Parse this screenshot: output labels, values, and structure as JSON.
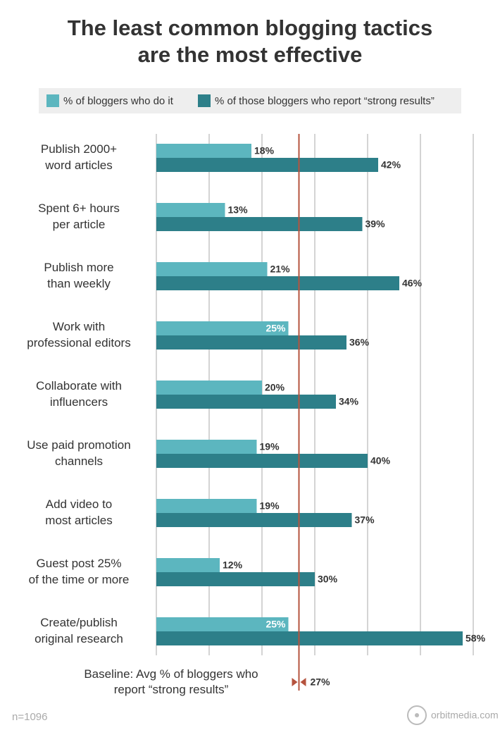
{
  "chart_data": {
    "type": "hbar",
    "title": "The least common blogging tactics\nare the most effective",
    "categories": [
      "Publish 2000+\nword articles",
      "Spent 6+ hours\nper article",
      "Publish more\nthan weekly",
      "Work with\nprofessional editors",
      "Collaborate with\ninfluencers",
      "Use paid promotion\nchannels",
      "Add video to\nmost articles",
      "Guest post 25%\nof the time or more",
      "Create/publish\noriginal research"
    ],
    "series": [
      {
        "name": "% of bloggers who do it",
        "color": "#5cb6bf",
        "values": [
          18,
          13,
          21,
          25,
          20,
          19,
          19,
          12,
          25
        ],
        "value_labels": [
          "18%",
          "13%",
          "21%",
          "25%",
          "20%",
          "19%",
          "19%",
          "12%",
          "25%"
        ]
      },
      {
        "name": "% of those bloggers who report “strong results”",
        "color": "#2d7f89",
        "values": [
          42,
          39,
          46,
          36,
          34,
          40,
          37,
          30,
          58
        ],
        "value_labels": [
          "42%",
          "39%",
          "46%",
          "36%",
          "34%",
          "40%",
          "37%",
          "30%",
          "58%"
        ]
      }
    ],
    "xlim": [
      0,
      60
    ],
    "xticks": [
      0,
      10,
      20,
      30,
      40,
      50,
      60
    ],
    "grid": true,
    "baseline": {
      "label": "Baseline: Avg % of bloggers who\nreport “strong results”",
      "value": 27,
      "value_label": "27%",
      "color": "#b5533e"
    },
    "note": "n=1096",
    "source": "orbitmedia.com"
  }
}
